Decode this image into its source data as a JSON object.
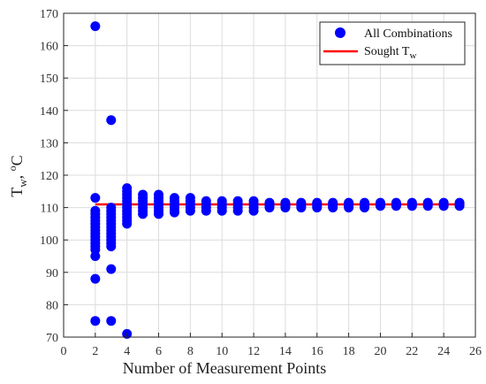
{
  "colors": {
    "points": "#0000ff",
    "line": "#ff0000",
    "grid": "#dcdcdc",
    "axis": "#262626"
  },
  "chart_data": {
    "type": "scatter",
    "xlabel": "Number of Measurement Points",
    "ylabel": "T",
    "ylabel_sub": "w",
    "ylabel_tail": ", ",
    "ylabel_sup": "o",
    "ylabel_unit": "C",
    "xlim": [
      0,
      26
    ],
    "ylim": [
      70,
      170
    ],
    "xticks": [
      0,
      2,
      4,
      6,
      8,
      10,
      12,
      14,
      16,
      18,
      20,
      22,
      24,
      26
    ],
    "yticks": [
      70,
      80,
      90,
      100,
      110,
      120,
      130,
      140,
      150,
      160,
      170
    ],
    "grid": true,
    "legend_position": "top-right",
    "series": [
      {
        "name": "All Combinations",
        "kind": "scatter",
        "points": [
          [
            2,
            166
          ],
          [
            2,
            113
          ],
          [
            2,
            109
          ],
          [
            2,
            108
          ],
          [
            2,
            107
          ],
          [
            2,
            106
          ],
          [
            2,
            105
          ],
          [
            2,
            104
          ],
          [
            2,
            103
          ],
          [
            2,
            102
          ],
          [
            2,
            101
          ],
          [
            2,
            100
          ],
          [
            2,
            99
          ],
          [
            2,
            98
          ],
          [
            2,
            97
          ],
          [
            2,
            95
          ],
          [
            2,
            88
          ],
          [
            2,
            75
          ],
          [
            3,
            137
          ],
          [
            3,
            110
          ],
          [
            3,
            109
          ],
          [
            3,
            108
          ],
          [
            3,
            107
          ],
          [
            3,
            106
          ],
          [
            3,
            105
          ],
          [
            3,
            104
          ],
          [
            3,
            103
          ],
          [
            3,
            102
          ],
          [
            3,
            101
          ],
          [
            3,
            100
          ],
          [
            3,
            99
          ],
          [
            3,
            98
          ],
          [
            3,
            91
          ],
          [
            3,
            75
          ],
          [
            4,
            116
          ],
          [
            4,
            115
          ],
          [
            4,
            114
          ],
          [
            4,
            113
          ],
          [
            4,
            112
          ],
          [
            4,
            111
          ],
          [
            4,
            110
          ],
          [
            4,
            109
          ],
          [
            4,
            108
          ],
          [
            4,
            107
          ],
          [
            4,
            106
          ],
          [
            4,
            105
          ],
          [
            4,
            71
          ],
          [
            5,
            114
          ],
          [
            5,
            113
          ],
          [
            5,
            112
          ],
          [
            5,
            111
          ],
          [
            5,
            110
          ],
          [
            5,
            109
          ],
          [
            5,
            108
          ],
          [
            6,
            114
          ],
          [
            6,
            113
          ],
          [
            6,
            112
          ],
          [
            6,
            111
          ],
          [
            6,
            110
          ],
          [
            6,
            109
          ],
          [
            6,
            108
          ],
          [
            7,
            113
          ],
          [
            7,
            112
          ],
          [
            7,
            111
          ],
          [
            7,
            110
          ],
          [
            7,
            109
          ],
          [
            7,
            108.5
          ],
          [
            8,
            113
          ],
          [
            8,
            112
          ],
          [
            8,
            111
          ],
          [
            8,
            110
          ],
          [
            8,
            109
          ],
          [
            9,
            112
          ],
          [
            9,
            111
          ],
          [
            9,
            110
          ],
          [
            9,
            109
          ],
          [
            10,
            112
          ],
          [
            10,
            111
          ],
          [
            10,
            110
          ],
          [
            10,
            109
          ],
          [
            11,
            112
          ],
          [
            11,
            111
          ],
          [
            11,
            110
          ],
          [
            11,
            109
          ],
          [
            12,
            112
          ],
          [
            12,
            111
          ],
          [
            12,
            110
          ],
          [
            12,
            109
          ],
          [
            13,
            111.5
          ],
          [
            13,
            111
          ],
          [
            13,
            110.5
          ],
          [
            13,
            110
          ],
          [
            14,
            111.5
          ],
          [
            14,
            111
          ],
          [
            14,
            110.5
          ],
          [
            14,
            110
          ],
          [
            15,
            111.5
          ],
          [
            15,
            111
          ],
          [
            15,
            110.5
          ],
          [
            15,
            110
          ],
          [
            16,
            111.5
          ],
          [
            16,
            111
          ],
          [
            16,
            110.5
          ],
          [
            16,
            110
          ],
          [
            17,
            111.5
          ],
          [
            17,
            111
          ],
          [
            17,
            110.5
          ],
          [
            17,
            110
          ],
          [
            18,
            111.5
          ],
          [
            18,
            111
          ],
          [
            18,
            110.5
          ],
          [
            18,
            110
          ],
          [
            19,
            111.5
          ],
          [
            19,
            111
          ],
          [
            19,
            110.5
          ],
          [
            19,
            110
          ],
          [
            20,
            111.5
          ],
          [
            20,
            111
          ],
          [
            20,
            110.5
          ],
          [
            21,
            111.5
          ],
          [
            21,
            111
          ],
          [
            21,
            110.5
          ],
          [
            22,
            111.5
          ],
          [
            22,
            111
          ],
          [
            22,
            110.5
          ],
          [
            23,
            111.5
          ],
          [
            23,
            111
          ],
          [
            23,
            110.5
          ],
          [
            24,
            111.5
          ],
          [
            24,
            111
          ],
          [
            24,
            110.5
          ],
          [
            25,
            111.5
          ],
          [
            25,
            111
          ],
          [
            25,
            110.5
          ]
        ]
      },
      {
        "name": "Sought T",
        "name_sub": "w",
        "kind": "line",
        "x": [
          2,
          25
        ],
        "y": [
          111,
          111
        ]
      }
    ]
  }
}
